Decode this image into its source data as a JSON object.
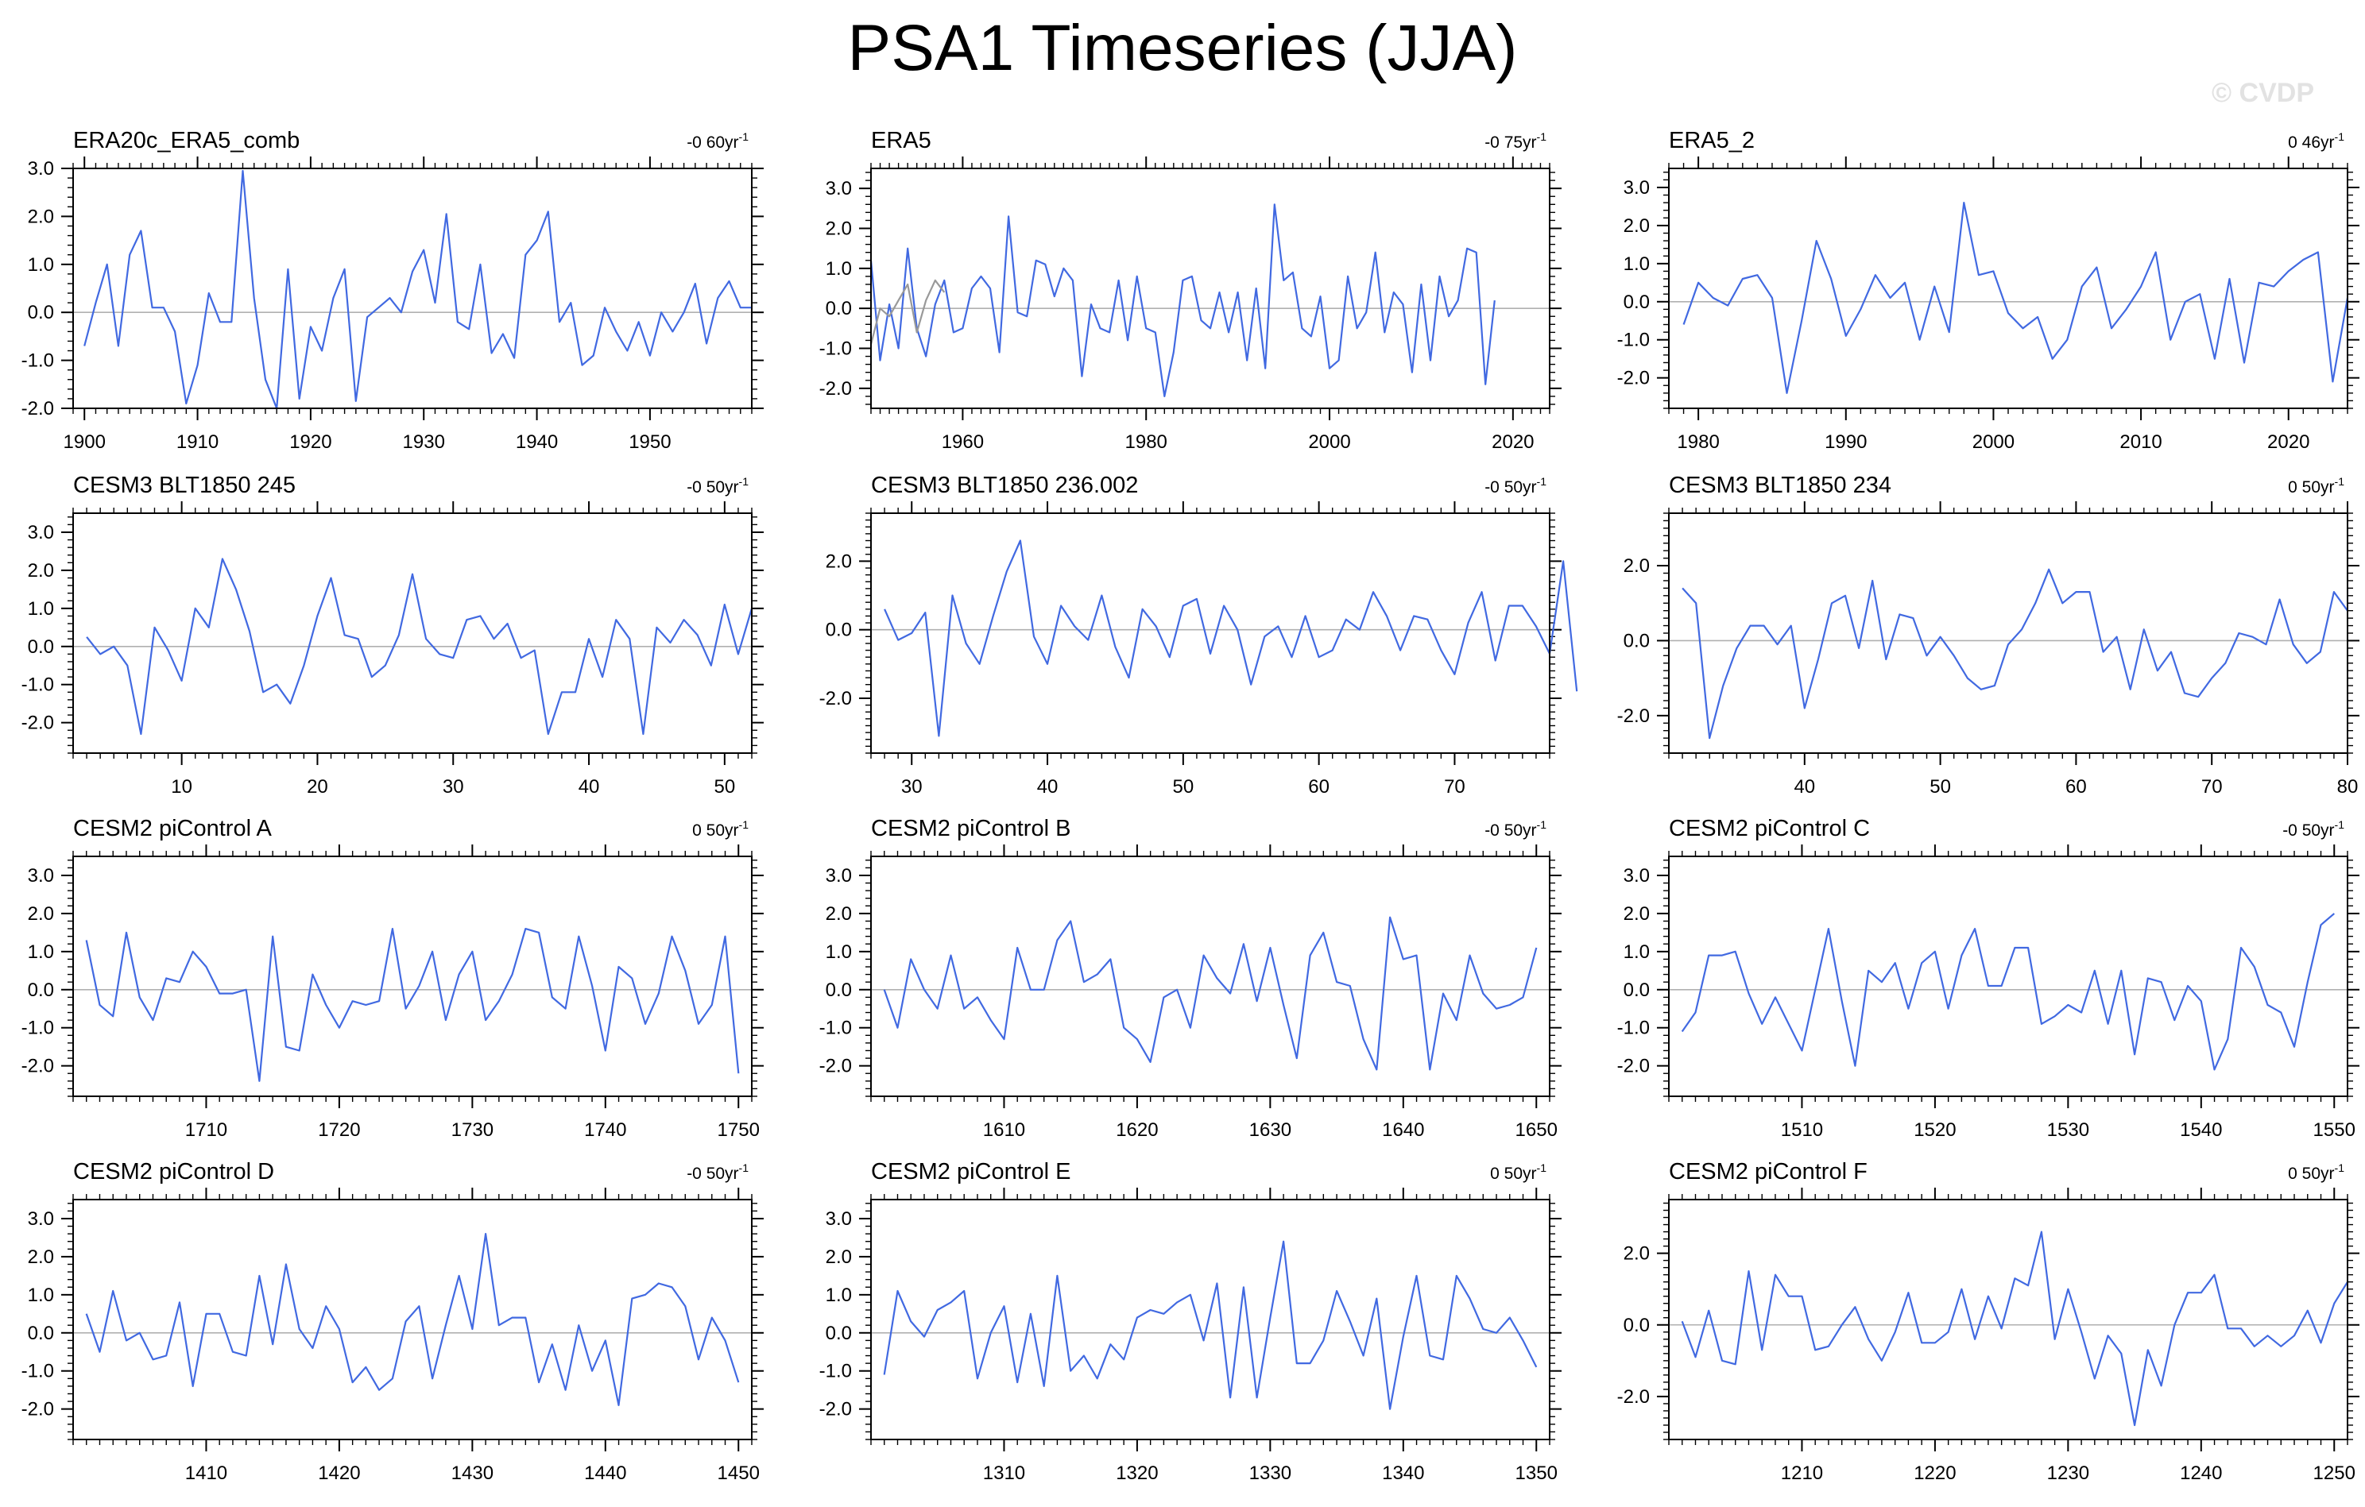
{
  "title": "PSA1 Timeseries (JJA)",
  "watermark": "© CVDP",
  "colors": {
    "line": "#4169e1",
    "secondary_line": "#999999",
    "zero_line": "#b0b0b0",
    "axis": "#000000"
  },
  "chart_data": [
    {
      "type": "line",
      "title": "ERA20c_ERA5_comb",
      "trend": "-0 60yr",
      "trend_sup": "-1",
      "xlim": [
        1899,
        1959
      ],
      "ylim": [
        -2,
        3
      ],
      "xticks": [
        1900,
        1910,
        1920,
        1930,
        1940,
        1950
      ],
      "yticks": [
        -2,
        -1,
        0,
        1,
        2,
        3
      ],
      "ytick_labels": [
        "-2.0",
        "-1.0",
        "0.0",
        "1.0",
        "2.0",
        "3.0"
      ],
      "x_start": 1900,
      "series": [
        {
          "values": [
            -0.7,
            0.2,
            1.0,
            -0.7,
            1.2,
            1.7,
            0.1,
            0.1,
            -0.4,
            -1.9,
            -1.1,
            0.4,
            -0.2,
            -0.2,
            2.95,
            0.3,
            -1.4,
            -2.0,
            0.9,
            -1.8,
            -0.3,
            -0.8,
            0.3,
            0.9,
            -1.85,
            -0.1,
            0.1,
            0.3,
            0.0,
            0.85,
            1.3,
            0.2,
            2.05,
            -0.2,
            -0.35,
            1.0,
            -0.85,
            -0.45,
            -0.95,
            1.2,
            1.5,
            2.1,
            -0.2,
            0.2,
            -1.1,
            -0.9,
            0.1,
            -0.4,
            -0.8,
            -0.2,
            -0.9,
            0.0,
            -0.4,
            0.0,
            0.6,
            -0.65,
            0.3,
            0.65,
            0.1,
            0.1
          ]
        }
      ]
    },
    {
      "type": "line",
      "title": "ERA5",
      "trend": "-0 75yr",
      "trend_sup": "-1",
      "xlim": [
        1950,
        2024
      ],
      "ylim": [
        -2.5,
        3.5
      ],
      "xticks": [
        1960,
        1980,
        2000,
        2020
      ],
      "yticks": [
        -2,
        -1,
        0,
        1,
        2,
        3
      ],
      "ytick_labels": [
        "-2.0",
        "-1.0",
        "0.0",
        "1.0",
        "2.0",
        "3.0"
      ],
      "x_start": 1950,
      "series": [
        {
          "values": [
            1.2,
            -1.3,
            0.1,
            -1.0,
            1.5,
            -0.5,
            -1.2,
            0.1,
            0.7,
            -0.6,
            -0.5,
            0.5,
            0.8,
            0.5,
            -1.1,
            2.3,
            -0.1,
            -0.2,
            1.2,
            1.1,
            0.3,
            1.0,
            0.7,
            -1.7,
            0.1,
            -0.5,
            -0.6,
            0.7,
            -0.8,
            0.8,
            -0.5,
            -0.6,
            -2.2,
            -1.1,
            0.7,
            0.8,
            -0.3,
            -0.5,
            0.4,
            -0.6,
            0.4,
            -1.3,
            0.5,
            -1.5,
            2.6,
            0.7,
            0.9,
            -0.5,
            -0.7,
            0.3,
            -1.5,
            -1.3,
            0.8,
            -0.5,
            -0.1,
            1.4,
            -0.6,
            0.4,
            0.1,
            -1.6,
            0.6,
            -1.3,
            0.8,
            -0.2,
            0.2,
            1.5,
            1.4,
            -1.9,
            0.2
          ]
        },
        {
          "values": [
            -0.9,
            0.0,
            -0.2,
            0.2,
            0.6,
            -0.6,
            0.2,
            0.7,
            0.4
          ]
        }
      ]
    },
    {
      "type": "line",
      "title": "ERA5_2",
      "trend": "0 46yr",
      "trend_sup": "-1",
      "xlim": [
        1978,
        2024
      ],
      "ylim": [
        -2.8,
        3.5
      ],
      "xticks": [
        1980,
        1990,
        2000,
        2010,
        2020
      ],
      "yticks": [
        -2,
        -1,
        0,
        1,
        2,
        3
      ],
      "ytick_labels": [
        "-2.0",
        "-1.0",
        "0.0",
        "1.0",
        "2.0",
        "3.0"
      ],
      "x_start": 1979,
      "series": [
        {
          "values": [
            -0.6,
            0.5,
            0.1,
            -0.1,
            0.6,
            0.7,
            0.1,
            -2.4,
            -0.5,
            1.6,
            0.6,
            -0.9,
            -0.2,
            0.7,
            0.1,
            0.5,
            -1.0,
            0.4,
            -0.8,
            2.6,
            0.7,
            0.8,
            -0.3,
            -0.7,
            -0.4,
            -1.5,
            -1.0,
            0.4,
            0.9,
            -0.7,
            -0.2,
            0.4,
            1.3,
            -1.0,
            0.0,
            0.2,
            -1.5,
            0.6,
            -1.6,
            0.5,
            0.4,
            0.8,
            1.1,
            1.3,
            -2.1,
            0.1
          ]
        }
      ]
    },
    {
      "type": "line",
      "title": "CESM3 BLT1850 245",
      "trend": "-0 50yr",
      "trend_sup": "-1",
      "xlim": [
        2,
        52
      ],
      "ylim": [
        -2.8,
        3.5
      ],
      "xticks": [
        10,
        20,
        30,
        40,
        50
      ],
      "yticks": [
        -2,
        -1,
        0,
        1,
        2,
        3
      ],
      "ytick_labels": [
        "-2.0",
        "-1.0",
        "0.0",
        "1.0",
        "2.0",
        "3.0"
      ],
      "x_start": 3,
      "series": [
        {
          "values": [
            0.25,
            -0.2,
            0.0,
            -0.5,
            -2.3,
            0.5,
            -0.1,
            -0.9,
            1.0,
            0.5,
            2.3,
            1.5,
            0.4,
            -1.2,
            -1.0,
            -1.5,
            -0.5,
            0.8,
            1.8,
            0.3,
            0.2,
            -0.8,
            -0.5,
            0.3,
            1.9,
            0.2,
            -0.2,
            -0.3,
            0.7,
            0.8,
            0.2,
            0.6,
            -0.3,
            -0.1,
            -2.3,
            -1.2,
            -1.2,
            0.2,
            -0.8,
            0.7,
            0.2,
            -2.3,
            0.5,
            0.1,
            0.7,
            0.3,
            -0.5,
            1.1,
            -0.2,
            1.0
          ]
        }
      ]
    },
    {
      "type": "line",
      "title": "CESM3 BLT1850 236.002",
      "trend": "-0 50yr",
      "trend_sup": "-1",
      "xlim": [
        27,
        77
      ],
      "ylim": [
        -3.6,
        3.4
      ],
      "xticks": [
        30,
        40,
        50,
        60,
        70
      ],
      "yticks": [
        -2,
        0,
        2
      ],
      "ytick_labels": [
        "-2.0",
        "0.0",
        "2.0"
      ],
      "x_start": 28,
      "series": [
        {
          "values": [
            0.6,
            -0.3,
            -0.1,
            0.5,
            -3.1,
            1.0,
            -0.4,
            -1.0,
            0.4,
            1.7,
            2.6,
            -0.2,
            -1.0,
            0.7,
            0.1,
            -0.3,
            1.0,
            -0.5,
            -1.4,
            0.6,
            0.1,
            -0.8,
            0.7,
            0.9,
            -0.7,
            0.7,
            0.0,
            -1.6,
            -0.2,
            0.1,
            -0.8,
            0.4,
            -0.8,
            -0.6,
            0.3,
            0.0,
            1.1,
            0.4,
            -0.6,
            0.4,
            0.3,
            -0.6,
            -1.3,
            0.2,
            1.1,
            -0.9,
            0.7,
            0.7,
            0.1,
            -0.7,
            2.0,
            -1.8
          ]
        }
      ]
    },
    {
      "type": "line",
      "title": "CESM3 BLT1850 234",
      "trend": "0 50yr",
      "trend_sup": "-1",
      "xlim": [
        30,
        80
      ],
      "ylim": [
        -3.0,
        3.4
      ],
      "xticks": [
        40,
        50,
        60,
        70,
        80
      ],
      "yticks": [
        -2,
        0,
        2
      ],
      "ytick_labels": [
        "-2.0",
        "0.0",
        "2.0"
      ],
      "x_start": 31,
      "series": [
        {
          "values": [
            1.4,
            1.0,
            -2.6,
            -1.2,
            -0.2,
            0.4,
            0.4,
            -0.1,
            0.4,
            -1.8,
            -0.5,
            1.0,
            1.2,
            -0.2,
            1.6,
            -0.5,
            0.7,
            0.6,
            -0.4,
            0.1,
            -0.4,
            -1.0,
            -1.3,
            -1.2,
            -0.1,
            0.3,
            1.0,
            1.9,
            1.0,
            1.3,
            1.3,
            -0.3,
            0.1,
            -1.3,
            0.3,
            -0.8,
            -0.3,
            -1.4,
            -1.5,
            -1.0,
            -0.6,
            0.2,
            0.1,
            -0.1,
            1.1,
            -0.1,
            -0.6,
            -0.3,
            1.3,
            0.8
          ]
        }
      ]
    },
    {
      "type": "line",
      "title": "CESM2 piControl A",
      "trend": "0 50yr",
      "trend_sup": "-1",
      "xlim": [
        1700,
        1751
      ],
      "ylim": [
        -2.8,
        3.5
      ],
      "xticks": [
        1710,
        1720,
        1730,
        1740,
        1750
      ],
      "yticks": [
        -2,
        -1,
        0,
        1,
        2,
        3
      ],
      "ytick_labels": [
        "-2.0",
        "-1.0",
        "0.0",
        "1.0",
        "2.0",
        "3.0"
      ],
      "x_start": 1701,
      "series": [
        {
          "values": [
            1.3,
            -0.4,
            -0.7,
            1.5,
            -0.2,
            -0.8,
            0.3,
            0.2,
            1.0,
            0.6,
            -0.1,
            -0.1,
            0.0,
            -2.4,
            1.4,
            -1.5,
            -1.6,
            0.4,
            -0.4,
            -1.0,
            -0.3,
            -0.4,
            -0.3,
            1.6,
            -0.5,
            0.1,
            1.0,
            -0.8,
            0.4,
            1.0,
            -0.8,
            -0.3,
            0.4,
            1.6,
            1.5,
            -0.2,
            -0.5,
            1.4,
            0.1,
            -1.6,
            0.6,
            0.3,
            -0.9,
            -0.1,
            1.4,
            0.5,
            -0.9,
            -0.4,
            1.4,
            -2.2
          ]
        }
      ]
    },
    {
      "type": "line",
      "title": "CESM2 piControl B",
      "trend": "-0 50yr",
      "trend_sup": "-1",
      "xlim": [
        1600,
        1651
      ],
      "ylim": [
        -2.8,
        3.5
      ],
      "xticks": [
        1610,
        1620,
        1630,
        1640,
        1650
      ],
      "yticks": [
        -2,
        -1,
        0,
        1,
        2,
        3
      ],
      "ytick_labels": [
        "-2.0",
        "-1.0",
        "0.0",
        "1.0",
        "2.0",
        "3.0"
      ],
      "x_start": 1601,
      "series": [
        {
          "values": [
            0.0,
            -1.0,
            0.8,
            0.0,
            -0.5,
            0.9,
            -0.5,
            -0.2,
            -0.8,
            -1.3,
            1.1,
            0.0,
            0.0,
            1.3,
            1.8,
            0.2,
            0.4,
            0.8,
            -1.0,
            -1.3,
            -1.9,
            -0.2,
            0.0,
            -1.0,
            0.9,
            0.3,
            -0.1,
            1.2,
            -0.3,
            1.1,
            -0.4,
            -1.8,
            0.9,
            1.5,
            0.2,
            0.1,
            -1.3,
            -2.1,
            1.9,
            0.8,
            0.9,
            -2.1,
            -0.1,
            -0.8,
            0.9,
            -0.1,
            -0.5,
            -0.4,
            -0.2,
            1.1
          ]
        }
      ]
    },
    {
      "type": "line",
      "title": "CESM2 piControl C",
      "trend": "-0 50yr",
      "trend_sup": "-1",
      "xlim": [
        1500,
        1551
      ],
      "ylim": [
        -2.8,
        3.5
      ],
      "xticks": [
        1510,
        1520,
        1530,
        1540,
        1550
      ],
      "yticks": [
        -2,
        -1,
        0,
        1,
        2,
        3
      ],
      "ytick_labels": [
        "-2.0",
        "-1.0",
        "0.0",
        "1.0",
        "2.0",
        "3.0"
      ],
      "x_start": 1501,
      "series": [
        {
          "values": [
            -1.1,
            -0.6,
            0.9,
            0.9,
            1.0,
            -0.1,
            -0.9,
            -0.2,
            -0.9,
            -1.6,
            0.0,
            1.6,
            -0.3,
            -2.0,
            0.5,
            0.2,
            0.7,
            -0.5,
            0.7,
            1.0,
            -0.5,
            0.9,
            1.6,
            0.1,
            0.1,
            1.1,
            1.1,
            -0.9,
            -0.7,
            -0.4,
            -0.6,
            0.5,
            -0.9,
            0.5,
            -1.7,
            0.3,
            0.2,
            -0.8,
            0.1,
            -0.3,
            -2.1,
            -1.3,
            1.1,
            0.6,
            -0.4,
            -0.6,
            -1.5,
            0.2,
            1.7,
            2.0
          ]
        }
      ]
    },
    {
      "type": "line",
      "title": "CESM2 piControl D",
      "trend": "-0 50yr",
      "trend_sup": "-1",
      "xlim": [
        1400,
        1451
      ],
      "ylim": [
        -2.8,
        3.5
      ],
      "xticks": [
        1410,
        1420,
        1430,
        1440,
        1450
      ],
      "yticks": [
        -2,
        -1,
        0,
        1,
        2,
        3
      ],
      "ytick_labels": [
        "-2.0",
        "-1.0",
        "0.0",
        "1.0",
        "2.0",
        "3.0"
      ],
      "x_start": 1401,
      "series": [
        {
          "values": [
            0.5,
            -0.5,
            1.1,
            -0.2,
            0.0,
            -0.7,
            -0.6,
            0.8,
            -1.4,
            0.5,
            0.5,
            -0.5,
            -0.6,
            1.5,
            -0.3,
            1.8,
            0.1,
            -0.4,
            0.7,
            0.1,
            -1.3,
            -0.9,
            -1.5,
            -1.2,
            0.3,
            0.7,
            -1.2,
            0.2,
            1.5,
            0.1,
            2.6,
            0.2,
            0.4,
            0.4,
            -1.3,
            -0.3,
            -1.5,
            0.2,
            -1.0,
            -0.2,
            -1.9,
            0.9,
            1.0,
            1.3,
            1.2,
            0.7,
            -0.7,
            0.4,
            -0.2,
            -1.3
          ]
        }
      ]
    },
    {
      "type": "line",
      "title": "CESM2 piControl E",
      "trend": "0 50yr",
      "trend_sup": "-1",
      "xlim": [
        1300,
        1351
      ],
      "ylim": [
        -2.8,
        3.5
      ],
      "xticks": [
        1310,
        1320,
        1330,
        1340,
        1350
      ],
      "yticks": [
        -2,
        -1,
        0,
        1,
        2,
        3
      ],
      "ytick_labels": [
        "-2.0",
        "-1.0",
        "0.0",
        "1.0",
        "2.0",
        "3.0"
      ],
      "x_start": 1301,
      "series": [
        {
          "values": [
            -1.1,
            1.1,
            0.3,
            -0.1,
            0.6,
            0.8,
            1.1,
            -1.2,
            0.0,
            0.7,
            -1.3,
            0.5,
            -1.4,
            1.5,
            -1.0,
            -0.6,
            -1.2,
            -0.3,
            -0.7,
            0.4,
            0.6,
            0.5,
            0.8,
            1.0,
            -0.2,
            1.3,
            -1.7,
            1.2,
            -1.7,
            0.4,
            2.4,
            -0.8,
            -0.8,
            -0.2,
            1.1,
            0.3,
            -0.6,
            0.9,
            -2.0,
            -0.1,
            1.5,
            -0.6,
            -0.7,
            1.5,
            0.9,
            0.1,
            0.0,
            0.4,
            -0.2,
            -0.9
          ]
        }
      ]
    },
    {
      "type": "line",
      "title": "CESM2 piControl F",
      "trend": "0 50yr",
      "trend_sup": "-1",
      "xlim": [
        1200,
        1251
      ],
      "ylim": [
        -3.2,
        3.5
      ],
      "xticks": [
        1210,
        1220,
        1230,
        1240,
        1250
      ],
      "yticks": [
        -2,
        0,
        2
      ],
      "ytick_labels": [
        "-2.0",
        "0.0",
        "2.0"
      ],
      "x_start": 1201,
      "series": [
        {
          "values": [
            0.1,
            -0.9,
            0.4,
            -1.0,
            -1.1,
            1.5,
            -0.7,
            1.4,
            0.8,
            0.8,
            -0.7,
            -0.6,
            0.0,
            0.5,
            -0.4,
            -1.0,
            -0.2,
            0.9,
            -0.5,
            -0.5,
            -0.2,
            1.0,
            -0.4,
            0.8,
            -0.1,
            1.3,
            1.1,
            2.6,
            -0.4,
            1.0,
            -0.2,
            -1.5,
            -0.3,
            -0.8,
            -2.8,
            -0.7,
            -1.7,
            0.0,
            0.9,
            0.9,
            1.4,
            -0.1,
            -0.1,
            -0.6,
            -0.3,
            -0.6,
            -0.3,
            0.4,
            -0.5,
            0.6,
            1.2
          ]
        }
      ]
    }
  ]
}
